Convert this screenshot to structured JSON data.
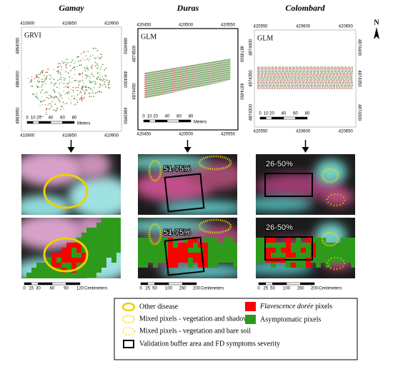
{
  "columns": [
    {
      "title": "Gamay",
      "index": "GRVI",
      "top_ticks": [
        410800,
        410850,
        410900
      ],
      "side_ticks": [
        4864050,
        4864000,
        4863950
      ],
      "bottom_ticks": [
        410800,
        410850,
        410900
      ],
      "scale": [
        0,
        10,
        20,
        40,
        60,
        80
      ],
      "scale_unit": "Meters",
      "zoom_scale": [
        0,
        15,
        30,
        60,
        90,
        120
      ],
      "zoom_unit": "Centimeters"
    },
    {
      "title": "Duras",
      "index": "GLM",
      "top_ticks": [
        420450,
        420500,
        420550
      ],
      "side_ticks": [
        4874500,
        4874450
      ],
      "bottom_ticks": [
        420450,
        420500,
        420550
      ],
      "scale": [
        0,
        10,
        20,
        40,
        60,
        80
      ],
      "scale_unit": "Meters",
      "zoom_label": "51-75%",
      "zoom_scale": [
        0,
        25,
        50,
        100,
        150,
        200
      ],
      "zoom_unit": "Centimeters"
    },
    {
      "title": "Colombard",
      "index": "GLM",
      "top_ticks": [
        420550,
        420600,
        420650
      ],
      "side_ticks": [
        4874400,
        4874350,
        4874300
      ],
      "bottom_ticks": [
        420550,
        420600,
        420650
      ],
      "scale": [
        0,
        10,
        20,
        40,
        60,
        80
      ],
      "zoom_label": "26-50%",
      "zoom_scale": [
        0,
        25,
        50,
        100,
        150,
        200
      ],
      "zoom_unit": "Centimeters"
    }
  ],
  "north": "N",
  "legend": {
    "other_disease": "Other  disease",
    "mixed_shadow": "Mixed pixels - vegetation and shadow",
    "mixed_soil": "Mixed pixels - vegetation and bare soil",
    "validation": "Validation buffer area and FD symptoms severity",
    "fd_name": "Flavescence dorée",
    "fd_suffix": " pixels",
    "asymptomatic": "Asymptomatic pixels"
  }
}
